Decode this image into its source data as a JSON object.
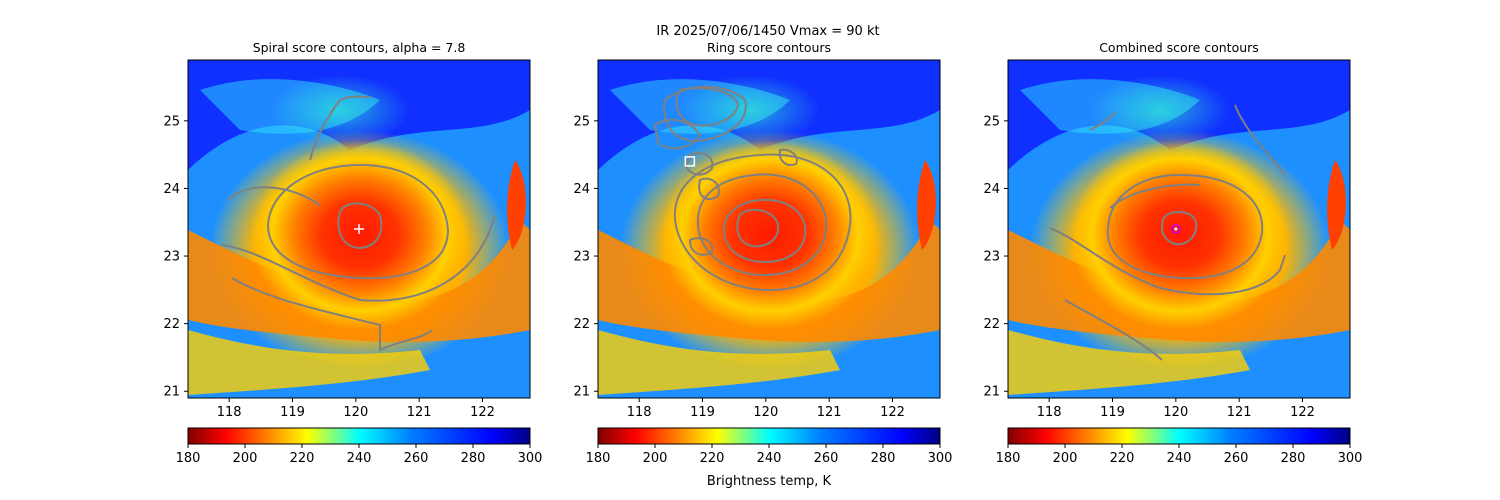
{
  "figure": {
    "suptitle_line1": "IR  2025/07/06/1450    Vmax = 90 kt",
    "colorbar_label": "Brightness temp, K"
  },
  "colors": {
    "contour": "#808080",
    "spiral_marker": "#ffffff",
    "ring_marker": "#ffffff",
    "combined_marker": "#cc00cc"
  },
  "chart_data": [
    {
      "type": "heatmap",
      "title": "Spiral score contours, alpha =  7.8",
      "xlim": [
        117.35,
        122.75
      ],
      "ylim": [
        20.9,
        25.9
      ],
      "xticks": [
        "118",
        "119",
        "120",
        "121",
        "122"
      ],
      "yticks": [
        "21",
        "22",
        "23",
        "24",
        "25"
      ],
      "colormap": "jet_r",
      "marker": {
        "shape": "plus",
        "lon": 120.05,
        "lat": 23.4
      },
      "colorbar": {
        "min": 180,
        "max": 300,
        "ticks": [
          "180",
          "200",
          "220",
          "240",
          "260",
          "280",
          "300"
        ]
      }
    },
    {
      "type": "heatmap",
      "title": "Ring score contours",
      "xlim": [
        117.35,
        122.75
      ],
      "ylim": [
        20.9,
        25.9
      ],
      "xticks": [
        "118",
        "119",
        "120",
        "121",
        "122"
      ],
      "yticks": [
        "21",
        "22",
        "23",
        "24",
        "25"
      ],
      "colormap": "jet_r",
      "marker": {
        "shape": "square",
        "lon": 118.8,
        "lat": 24.4
      },
      "colorbar": {
        "min": 180,
        "max": 300,
        "ticks": [
          "180",
          "200",
          "220",
          "240",
          "260",
          "280",
          "300"
        ]
      }
    },
    {
      "type": "heatmap",
      "title": "Combined score contours",
      "xlim": [
        117.35,
        122.75
      ],
      "ylim": [
        20.9,
        25.9
      ],
      "xticks": [
        "118",
        "119",
        "120",
        "121",
        "122"
      ],
      "yticks": [
        "21",
        "22",
        "23",
        "24",
        "25"
      ],
      "colormap": "jet_r",
      "marker": {
        "shape": "circle",
        "lon": 120.0,
        "lat": 23.4
      },
      "colorbar": {
        "min": 180,
        "max": 300,
        "ticks": [
          "180",
          "200",
          "220",
          "240",
          "260",
          "280",
          "300"
        ]
      }
    }
  ]
}
